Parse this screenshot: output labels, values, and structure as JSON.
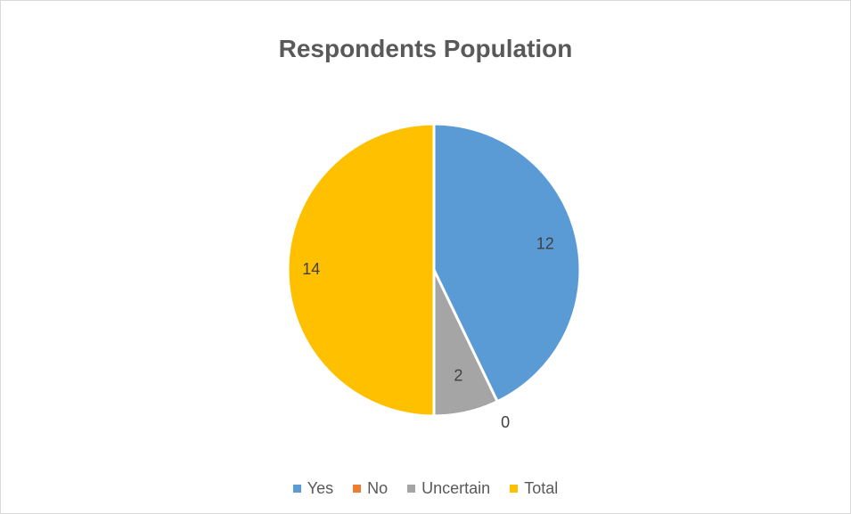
{
  "chart_data": {
    "type": "pie",
    "title": "Respondents Population",
    "categories": [
      "Yes",
      "No",
      "Uncertain",
      "Total"
    ],
    "values": [
      12,
      0,
      2,
      14
    ],
    "data_labels": [
      "12",
      "0",
      "2",
      "14"
    ],
    "colors": [
      "#5B9BD5",
      "#ED7D31",
      "#A5A5A5",
      "#FFC000"
    ],
    "legend_position": "bottom"
  }
}
